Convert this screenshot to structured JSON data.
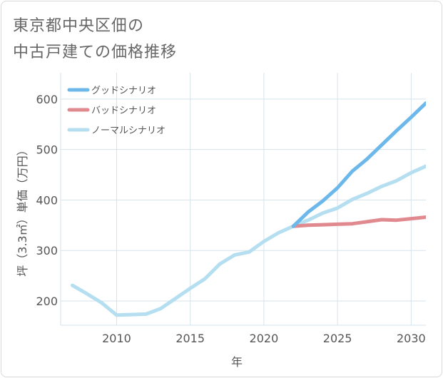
{
  "title_line1": "東京都中央区佃の",
  "title_line2": "中古戸建ての価格推移",
  "chart_data": {
    "type": "line",
    "title": "東京都中央区佃の中古戸建ての価格推移",
    "xlabel": "年",
    "ylabel": "坪（3.3㎡）単価（万円）",
    "xlim": [
      2006.2,
      2031
    ],
    "ylim": [
      152,
      652
    ],
    "xticks": [
      2010,
      2015,
      2020,
      2025,
      2030
    ],
    "yticks": [
      200,
      300,
      400,
      500,
      600
    ],
    "grid": true,
    "legend_position": "top-left",
    "series": [
      {
        "name": "グッドシナリオ",
        "color": "#6cb8eb",
        "x": [
          2022,
          2023,
          2024,
          2025,
          2026,
          2027,
          2028,
          2029,
          2030,
          2031
        ],
        "values": [
          348,
          376,
          398,
          424,
          457,
          481,
          509,
          537,
          564,
          592
        ]
      },
      {
        "name": "バッドシナリオ",
        "color": "#e08a8f",
        "x": [
          2022,
          2023,
          2024,
          2025,
          2026,
          2027,
          2028,
          2029,
          2030,
          2031
        ],
        "values": [
          348,
          350,
          351,
          352,
          353,
          357,
          361,
          360,
          363,
          366
        ]
      },
      {
        "name": "ノーマルシナリオ",
        "color": "#b5dff0",
        "x": [
          2007,
          2008,
          2009,
          2010,
          2011,
          2012,
          2013,
          2014,
          2015,
          2016,
          2017,
          2018,
          2019,
          2020,
          2021,
          2022,
          2023,
          2024,
          2025,
          2026,
          2027,
          2028,
          2029,
          2030,
          2031
        ],
        "values": [
          231,
          214,
          196,
          172,
          173,
          174,
          185,
          205,
          225,
          244,
          273,
          291,
          297,
          318,
          335,
          348,
          360,
          374,
          384,
          401,
          413,
          427,
          438,
          454,
          467
        ]
      }
    ]
  }
}
